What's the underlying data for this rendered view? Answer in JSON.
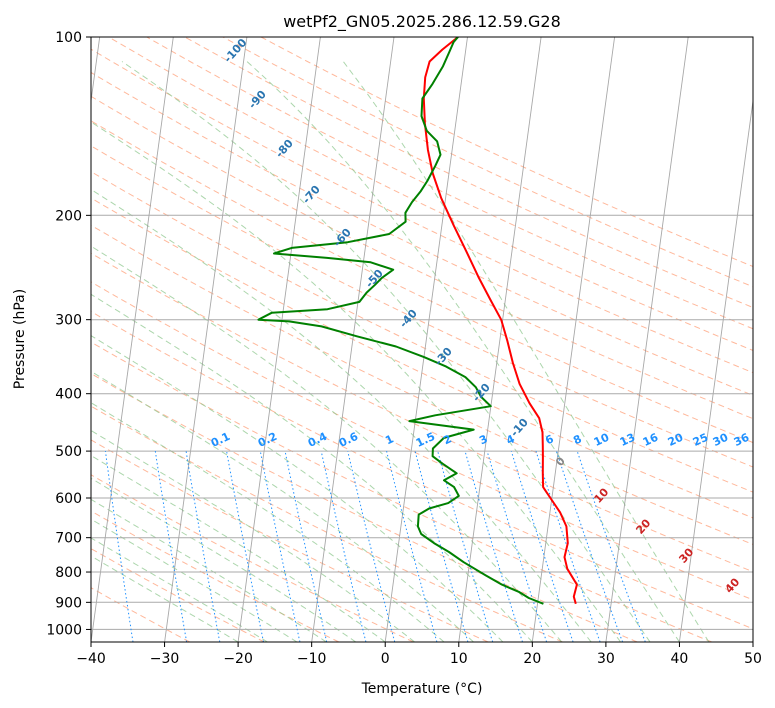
{
  "chart_data": {
    "type": "line",
    "title": "wetPf2_GN05.2025.286.12.59.G28",
    "xlabel": "Temperature (°C)",
    "ylabel": "Pressure (hPa)",
    "xlim": [
      -40,
      50
    ],
    "ylim": [
      1050,
      100
    ],
    "y_scale": "log",
    "grid": true,
    "x_ticks": [
      -40,
      -30,
      -20,
      -10,
      0,
      10,
      20,
      30,
      40,
      50
    ],
    "y_ticks": [
      100,
      200,
      300,
      400,
      500,
      600,
      700,
      800,
      900,
      1000
    ],
    "colors": {
      "temperature": "#ff0000",
      "dewpoint": "#008000",
      "dry_adiabat": "#ffa07a",
      "moist_adiabat": "#90c890",
      "mixing_ratio": "#1e90ff",
      "isotherm": "#999999"
    },
    "series": [
      {
        "values": [
          [
            25.2,
            905
          ],
          [
            24.8,
            880
          ],
          [
            25.0,
            840
          ],
          [
            23.4,
            790
          ],
          [
            22.8,
            755
          ],
          [
            23.0,
            715
          ],
          [
            22.5,
            670
          ],
          [
            21.4,
            635
          ],
          [
            19.8,
            600
          ],
          [
            18.6,
            575
          ],
          [
            18.3,
            545
          ],
          [
            18.0,
            510
          ],
          [
            17.8,
            490
          ],
          [
            17.5,
            465
          ],
          [
            16.8,
            440
          ],
          [
            15.2,
            415
          ],
          [
            13.5,
            385
          ],
          [
            12.2,
            355
          ],
          [
            11.0,
            325
          ],
          [
            9.8,
            300
          ],
          [
            8.0,
            278
          ],
          [
            6.0,
            255
          ],
          [
            3.8,
            230
          ],
          [
            1.6,
            208
          ],
          [
            -0.6,
            187
          ],
          [
            -2.2,
            170
          ],
          [
            -3.3,
            155
          ],
          [
            -4.2,
            140
          ],
          [
            -4.8,
            127
          ],
          [
            -5.0,
            117
          ],
          [
            -4.7,
            110
          ],
          [
            -3.2,
            105
          ],
          [
            -1.3,
            100
          ]
        ]
      },
      {
        "values": [
          [
            20.8,
            905
          ],
          [
            18.7,
            885
          ],
          [
            17.3,
            865
          ],
          [
            14.8,
            840
          ],
          [
            12.4,
            810
          ],
          [
            9.2,
            770
          ],
          [
            7.0,
            740
          ],
          [
            4.8,
            715
          ],
          [
            2.9,
            690
          ],
          [
            2.3,
            670
          ],
          [
            2.2,
            640
          ],
          [
            3.5,
            625
          ],
          [
            6.0,
            612
          ],
          [
            7.3,
            595
          ],
          [
            6.5,
            575
          ],
          [
            5.0,
            560
          ],
          [
            6.6,
            545
          ],
          [
            4.5,
            525
          ],
          [
            3.0,
            510
          ],
          [
            2.9,
            495
          ],
          [
            4.2,
            475
          ],
          [
            8.1,
            460
          ],
          [
            -0.8,
            445
          ],
          [
            2.6,
            435
          ],
          [
            10.0,
            420
          ],
          [
            8.5,
            405
          ],
          [
            7.6,
            390
          ],
          [
            6.0,
            375
          ],
          [
            3.2,
            360
          ],
          [
            0.0,
            347
          ],
          [
            -4.0,
            333
          ],
          [
            -9.5,
            320
          ],
          [
            -14.5,
            308
          ],
          [
            -19.0,
            302
          ],
          [
            -23.2,
            300
          ],
          [
            -21.5,
            292
          ],
          [
            -14.0,
            288
          ],
          [
            -9.8,
            280
          ],
          [
            -9.0,
            270
          ],
          [
            -8.0,
            262
          ],
          [
            -7.2,
            255
          ],
          [
            -5.8,
            247
          ],
          [
            -9.0,
            240
          ],
          [
            -15.0,
            236
          ],
          [
            -22.3,
            232
          ],
          [
            -20.0,
            227
          ],
          [
            -12.5,
            222
          ],
          [
            -7.0,
            215
          ],
          [
            -5.0,
            205
          ],
          [
            -5.2,
            198
          ],
          [
            -4.5,
            190
          ],
          [
            -3.5,
            182
          ],
          [
            -2.8,
            175
          ],
          [
            -2.0,
            165
          ],
          [
            -1.5,
            158
          ],
          [
            -2.2,
            150
          ],
          [
            -3.8,
            144
          ],
          [
            -4.8,
            136
          ],
          [
            -5.0,
            127
          ],
          [
            -3.9,
            120
          ],
          [
            -2.8,
            112
          ],
          [
            -2.2,
            106
          ],
          [
            -1.8,
            102
          ],
          [
            -1.3,
            100
          ]
        ]
      }
    ],
    "annotations": {
      "dry_adiabat_labels": [
        "-100",
        "-90",
        "-80",
        "-70",
        "-60",
        "-50",
        "-40",
        "-30",
        "-20",
        "-10"
      ],
      "mixing_ratio_labels": [
        "0.1",
        "0.2",
        "0.4",
        "0.6",
        "1",
        "1.5",
        "2",
        "3",
        "4",
        "6",
        "8",
        "10",
        "13",
        "16",
        "20",
        "25",
        "30",
        "36"
      ],
      "moist_adiabat_labels": [
        "0",
        "10",
        "20",
        "30",
        "40"
      ]
    }
  }
}
